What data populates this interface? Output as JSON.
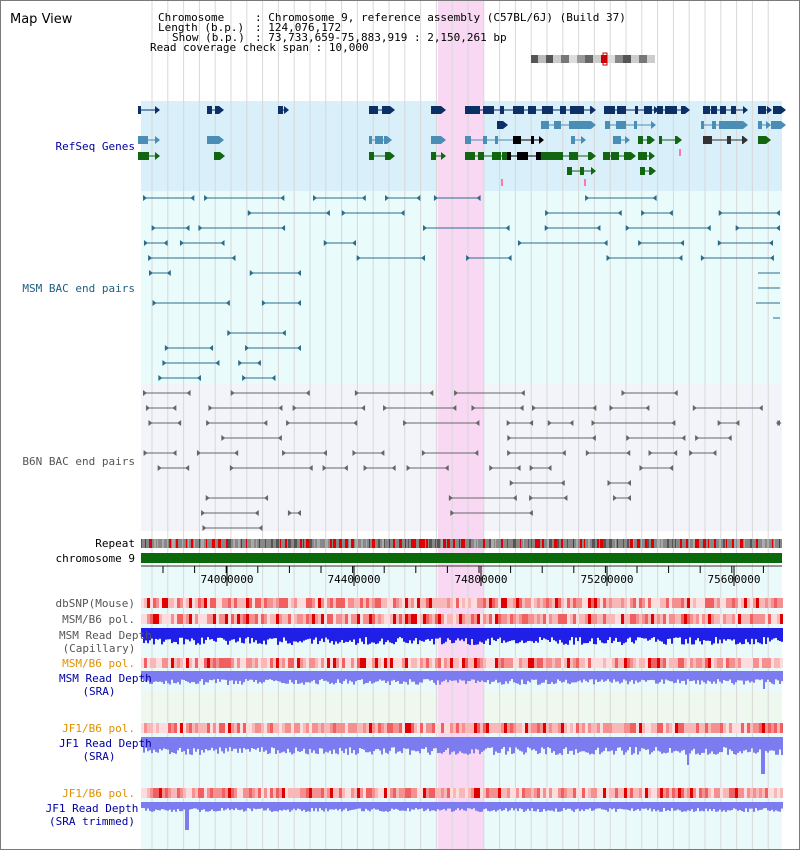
{
  "header": {
    "title": "Map View",
    "chromosome_label": "Chromosome",
    "chromosome_value": "Chromosome 9, reference assembly (C57BL/6J) (Build 37)",
    "length_label": "Length (b.p.)",
    "length_value": "124,076,172",
    "show_label": "Show (b.p.)",
    "show_value": "73,733,659-75,883,919 : 2,150,261 bp",
    "coverage_label": "Read coverage check span",
    "coverage_value": "10,000"
  },
  "tracks": {
    "refseq": "RefSeq Genes",
    "msm_bac": "MSM BAC end pairs",
    "b6n_bac": "B6N BAC end pairs",
    "repeat": "Repeat",
    "chromosome": "chromosome 9",
    "dbsnp": "dbSNP(Mouse)",
    "msm_b6_pol_1": "MSM/B6 pol.",
    "msm_read_depth_cap_1": "MSM Read Depth",
    "msm_read_depth_cap_2": "(Capillary)",
    "msm_b6_pol_2": "MSM/B6 pol.",
    "msm_read_depth_sra_1": "MSM Read Depth",
    "msm_read_depth_sra_2": "(SRA)",
    "jf1_b6_pol_1": "JF1/B6 pol.",
    "jf1_read_depth_sra_1": "JF1 Read Depth",
    "jf1_read_depth_sra_2": "(SRA)",
    "jf1_b6_pol_2": "JF1/B6 pol.",
    "jf1_read_depth_trim_1": "JF1 Read Depth",
    "jf1_read_depth_trim_2": "(SRA trimmed)"
  },
  "axis": {
    "ticks": [
      "74000000",
      "74400000",
      "74800000",
      "75200000",
      "75600000"
    ]
  },
  "colors": {
    "highlight": "#f9d8f4",
    "refseq_bg": "#d9effa",
    "msm_bg": "#e9fbfb",
    "b6n_bg": "#f3f4f9",
    "gene_navy": "#0c2f66",
    "gene_steel": "#4a8db5",
    "gene_green": "#126612",
    "msm_line": "#2a6e8c",
    "b6n_line": "#666666",
    "chromosome_green": "#0a6a0a",
    "depth_blue": "#1f1fe8",
    "depth_light": "#7c7cf0",
    "label_navy": "#0000a0",
    "label_teal": "#1d5f80",
    "label_orange": "#e09000"
  }
}
